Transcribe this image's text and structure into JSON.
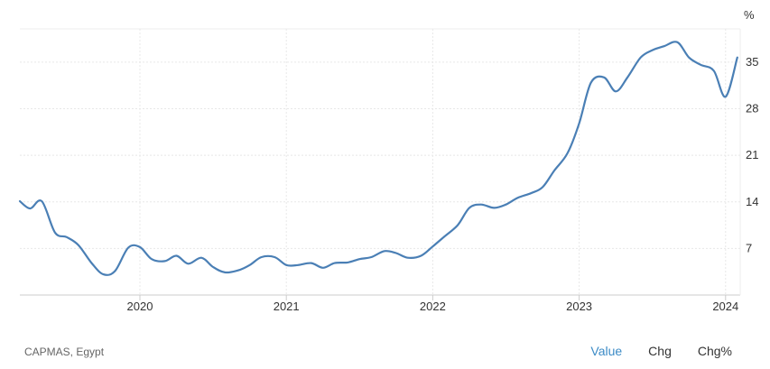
{
  "chart_data": {
    "type": "line",
    "unit_label": "%",
    "y_ticks": [
      7,
      14,
      21,
      28,
      35
    ],
    "ylim": [
      0,
      40
    ],
    "x_ticks": [
      {
        "label": "2020",
        "x": 2020.0
      },
      {
        "label": "2021",
        "x": 2021.0
      },
      {
        "label": "2022",
        "x": 2022.0
      },
      {
        "label": "2023",
        "x": 2023.0
      },
      {
        "label": "2024",
        "x": 2024.0
      }
    ],
    "xlim": [
      2019.18,
      2024.1
    ],
    "grid": true,
    "series": [
      {
        "color": "#4a7fb5",
        "points": [
          [
            2019.18,
            14.1
          ],
          [
            2019.25,
            13.0
          ],
          [
            2019.33,
            14.1
          ],
          [
            2019.42,
            9.4
          ],
          [
            2019.5,
            8.7
          ],
          [
            2019.58,
            7.5
          ],
          [
            2019.67,
            4.8
          ],
          [
            2019.75,
            3.1
          ],
          [
            2019.83,
            3.6
          ],
          [
            2019.92,
            7.1
          ],
          [
            2020.0,
            7.2
          ],
          [
            2020.08,
            5.4
          ],
          [
            2020.17,
            5.1
          ],
          [
            2020.25,
            5.9
          ],
          [
            2020.33,
            4.7
          ],
          [
            2020.42,
            5.6
          ],
          [
            2020.5,
            4.2
          ],
          [
            2020.58,
            3.4
          ],
          [
            2020.67,
            3.7
          ],
          [
            2020.75,
            4.5
          ],
          [
            2020.83,
            5.7
          ],
          [
            2020.92,
            5.7
          ],
          [
            2021.0,
            4.5
          ],
          [
            2021.08,
            4.5
          ],
          [
            2021.17,
            4.8
          ],
          [
            2021.25,
            4.1
          ],
          [
            2021.33,
            4.8
          ],
          [
            2021.42,
            4.9
          ],
          [
            2021.5,
            5.4
          ],
          [
            2021.58,
            5.7
          ],
          [
            2021.67,
            6.6
          ],
          [
            2021.75,
            6.3
          ],
          [
            2021.83,
            5.6
          ],
          [
            2021.92,
            5.9
          ],
          [
            2022.0,
            7.3
          ],
          [
            2022.08,
            8.8
          ],
          [
            2022.17,
            10.5
          ],
          [
            2022.25,
            13.1
          ],
          [
            2022.33,
            13.6
          ],
          [
            2022.42,
            13.1
          ],
          [
            2022.5,
            13.6
          ],
          [
            2022.58,
            14.6
          ],
          [
            2022.67,
            15.3
          ],
          [
            2022.75,
            16.2
          ],
          [
            2022.83,
            18.7
          ],
          [
            2022.92,
            21.3
          ],
          [
            2023.0,
            25.8
          ],
          [
            2023.08,
            31.9
          ],
          [
            2023.17,
            32.7
          ],
          [
            2023.25,
            30.6
          ],
          [
            2023.33,
            32.7
          ],
          [
            2023.42,
            35.7
          ],
          [
            2023.5,
            36.8
          ],
          [
            2023.58,
            37.4
          ],
          [
            2023.67,
            38.0
          ],
          [
            2023.75,
            35.7
          ],
          [
            2023.83,
            34.6
          ],
          [
            2023.92,
            33.7
          ],
          [
            2024.0,
            29.8
          ],
          [
            2024.08,
            35.7
          ]
        ]
      }
    ]
  },
  "footer": {
    "source": "CAPMAS, Egypt",
    "tabs": [
      "Value",
      "Chg",
      "Chg%"
    ],
    "active_tab": "Value"
  }
}
